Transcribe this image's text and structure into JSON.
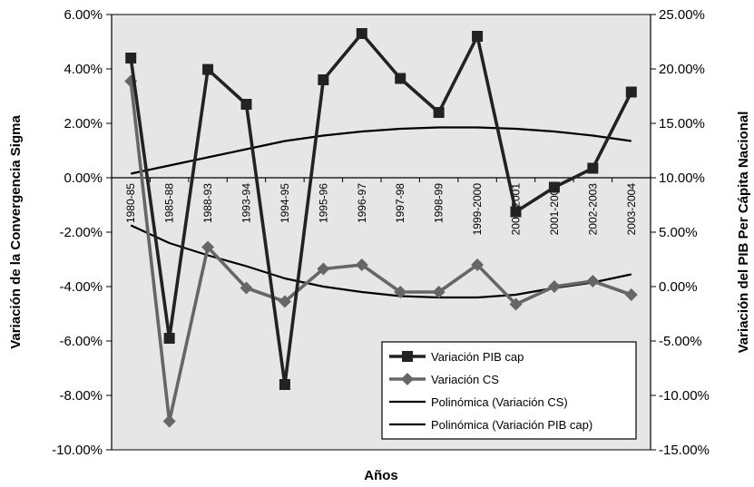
{
  "chart_data": {
    "type": "line",
    "categories": [
      "1980-85",
      "1985-88",
      "1988-93",
      "1993-94",
      "1994-95",
      "1995-96",
      "1996-97",
      "1997-98",
      "1998-99",
      "1999-2000",
      "2000-2001",
      "2001-2002",
      "2002-2003",
      "2003-2004"
    ],
    "xlabel": "Años",
    "ylabel_left": "Variación de la Convergencia Sigma",
    "ylabel_right": "Variación del PIB Per Cápita Nacional",
    "ylim_left": [
      -0.1,
      0.06
    ],
    "ylim_right": [
      -0.15,
      0.25
    ],
    "yticks_left": [
      "6.00%",
      "4.00%",
      "2.00%",
      "0.00%",
      "-2.00%",
      "-4.00%",
      "-6.00%",
      "-8.00%",
      "-10.00%"
    ],
    "yticks_right": [
      "25.00%",
      "20.00%",
      "15.00%",
      "10.00%",
      "5.00%",
      "0.00%",
      "-5.00%",
      "-10.00%",
      "-15.00%"
    ],
    "grid": false,
    "plot_background": "#e6e6e6",
    "legend_position": "bottom-right",
    "series": [
      {
        "name": "Variación PIB cap",
        "axis": "left",
        "marker": "square",
        "color": "#222222",
        "values": [
          0.044,
          -0.059,
          0.0398,
          0.027,
          -0.076,
          0.036,
          0.053,
          0.0365,
          0.024,
          0.052,
          -0.0125,
          -0.0035,
          0.0035,
          0.0315
        ]
      },
      {
        "name": "Variación CS",
        "axis": "left",
        "marker": "diamond",
        "color": "#666666",
        "values": [
          0.0355,
          -0.0895,
          -0.0255,
          -0.0405,
          -0.0455,
          -0.0335,
          -0.032,
          -0.042,
          -0.042,
          -0.032,
          -0.0465,
          -0.04,
          -0.038,
          -0.043
        ]
      },
      {
        "name": "Polinómica (Variación CS)",
        "axis": "left",
        "marker": "none",
        "color": "#000000",
        "values": [
          -0.0175,
          -0.024,
          -0.0285,
          -0.0325,
          -0.037,
          -0.04,
          -0.042,
          -0.0435,
          -0.044,
          -0.044,
          -0.043,
          -0.0405,
          -0.0385,
          -0.0355
        ]
      },
      {
        "name": "Polinómica (Variación PIB cap)",
        "axis": "left",
        "marker": "none",
        "color": "#000000",
        "values": [
          0.0015,
          0.0045,
          0.0075,
          0.0105,
          0.0135,
          0.0155,
          0.017,
          0.018,
          0.0185,
          0.0185,
          0.018,
          0.017,
          0.0155,
          0.0135
        ]
      }
    ]
  }
}
